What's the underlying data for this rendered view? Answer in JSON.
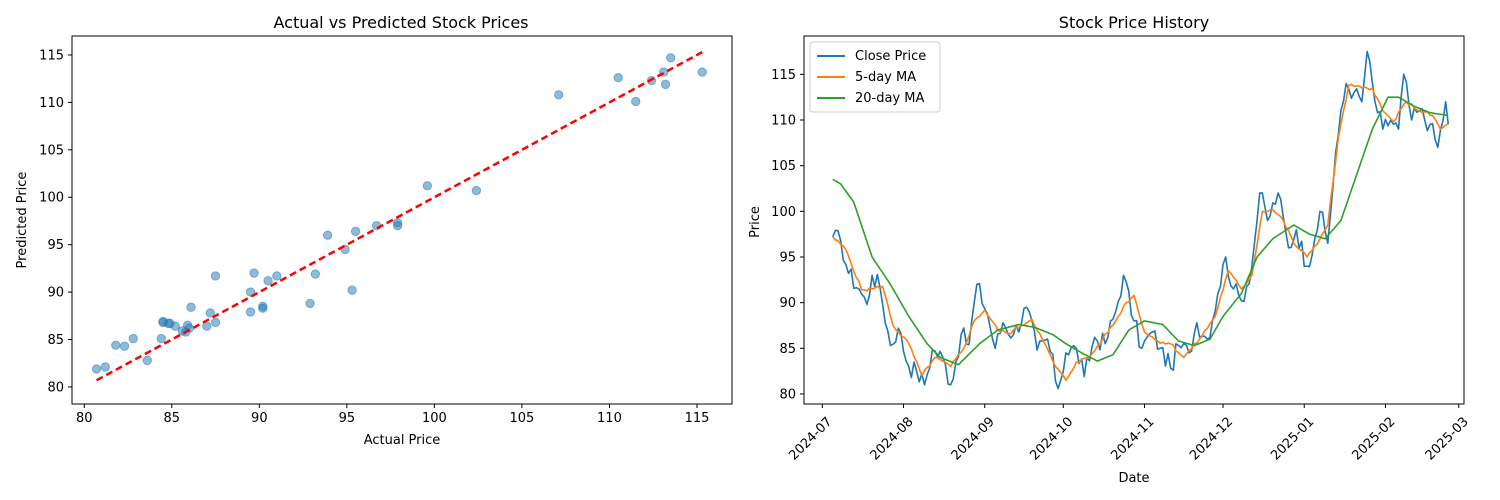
{
  "chart_data": [
    {
      "type": "scatter",
      "title": "Actual vs Predicted Stock Prices",
      "xlabel": "Actual Price",
      "ylabel": "Predicted Price",
      "xlim": [
        79.3,
        117.0
      ],
      "ylim": [
        78.2,
        117.0
      ],
      "xticks": [
        80,
        85,
        90,
        95,
        100,
        105,
        110,
        115
      ],
      "yticks": [
        80,
        85,
        90,
        95,
        100,
        105,
        110,
        115
      ],
      "grid": false,
      "point_color": "#1f77b4",
      "line_color": "#ff0000",
      "points": [
        {
          "x": 80.7,
          "y": 81.9
        },
        {
          "x": 81.2,
          "y": 82.1
        },
        {
          "x": 81.8,
          "y": 84.4
        },
        {
          "x": 82.3,
          "y": 84.3
        },
        {
          "x": 82.8,
          "y": 85.1
        },
        {
          "x": 83.6,
          "y": 82.8
        },
        {
          "x": 84.4,
          "y": 85.1
        },
        {
          "x": 84.5,
          "y": 86.8
        },
        {
          "x": 84.5,
          "y": 86.9
        },
        {
          "x": 84.8,
          "y": 86.7
        },
        {
          "x": 84.9,
          "y": 86.7
        },
        {
          "x": 85.2,
          "y": 86.4
        },
        {
          "x": 85.6,
          "y": 85.9
        },
        {
          "x": 85.8,
          "y": 85.8
        },
        {
          "x": 85.9,
          "y": 86.5
        },
        {
          "x": 86.0,
          "y": 86.2
        },
        {
          "x": 86.1,
          "y": 88.4
        },
        {
          "x": 87.0,
          "y": 86.4
        },
        {
          "x": 87.2,
          "y": 87.8
        },
        {
          "x": 87.5,
          "y": 86.8
        },
        {
          "x": 87.5,
          "y": 91.7
        },
        {
          "x": 89.5,
          "y": 90.0
        },
        {
          "x": 89.5,
          "y": 87.9
        },
        {
          "x": 89.7,
          "y": 92.0
        },
        {
          "x": 90.2,
          "y": 88.5
        },
        {
          "x": 90.2,
          "y": 88.3
        },
        {
          "x": 90.5,
          "y": 91.2
        },
        {
          "x": 91.0,
          "y": 91.7
        },
        {
          "x": 92.9,
          "y": 88.8
        },
        {
          "x": 93.2,
          "y": 91.9
        },
        {
          "x": 93.9,
          "y": 96.0
        },
        {
          "x": 94.9,
          "y": 94.5
        },
        {
          "x": 95.3,
          "y": 90.2
        },
        {
          "x": 95.5,
          "y": 96.4
        },
        {
          "x": 96.7,
          "y": 97.0
        },
        {
          "x": 97.9,
          "y": 97.0
        },
        {
          "x": 97.9,
          "y": 97.3
        },
        {
          "x": 99.6,
          "y": 101.2
        },
        {
          "x": 102.4,
          "y": 100.7
        },
        {
          "x": 107.1,
          "y": 110.8
        },
        {
          "x": 110.5,
          "y": 112.6
        },
        {
          "x": 111.5,
          "y": 110.1
        },
        {
          "x": 112.4,
          "y": 112.3
        },
        {
          "x": 113.1,
          "y": 113.2
        },
        {
          "x": 113.2,
          "y": 111.9
        },
        {
          "x": 113.5,
          "y": 114.7
        },
        {
          "x": 115.3,
          "y": 113.2
        }
      ],
      "reference_line": {
        "x": [
          80.7,
          115.3
        ],
        "y": [
          80.7,
          115.3
        ],
        "style": "dashed"
      }
    },
    {
      "type": "line",
      "title": "Stock Price History",
      "xlabel": "Date",
      "ylabel": "Price",
      "x_start": "2024-07-05",
      "x_step_days": 1,
      "xlim": [
        "2024-06-24",
        "2025-03-03"
      ],
      "ylim": [
        78.9,
        119.2
      ],
      "xticks": [
        "2024-07",
        "2024-08",
        "2024-09",
        "2024-10",
        "2024-11",
        "2024-12",
        "2025-01",
        "2025-02",
        "2025-03"
      ],
      "yticks": [
        80,
        85,
        90,
        95,
        100,
        105,
        110,
        115
      ],
      "grid": false,
      "legend": "top-left",
      "series": [
        {
          "name": "Close Price",
          "color": "#1f77b4",
          "values": []
        },
        {
          "name": "5-day MA",
          "color": "#ff7f0e",
          "values": []
        },
        {
          "name": "20-day MA",
          "color": "#2ca02c",
          "values": []
        }
      ],
      "anchors": {
        "close": [
          [
            "2024-07-05",
            97.2
          ],
          [
            "2024-07-08",
            96.8
          ],
          [
            "2024-07-11",
            93.2
          ],
          [
            "2024-07-15",
            91.5
          ],
          [
            "2024-07-18",
            89.8
          ],
          [
            "2024-07-20",
            93.0
          ],
          [
            "2024-07-23",
            91.7
          ],
          [
            "2024-07-27",
            85.3
          ],
          [
            "2024-07-30",
            87.2
          ],
          [
            "2024-08-03",
            83.0
          ],
          [
            "2024-08-06",
            82.5
          ],
          [
            "2024-08-09",
            81.0
          ],
          [
            "2024-08-12",
            84.8
          ],
          [
            "2024-08-16",
            84.0
          ],
          [
            "2024-08-19",
            81.0
          ],
          [
            "2024-08-23",
            86.5
          ],
          [
            "2024-08-26",
            85.4
          ],
          [
            "2024-08-29",
            92.0
          ],
          [
            "2024-09-02",
            88.8
          ],
          [
            "2024-09-05",
            85.0
          ],
          [
            "2024-09-08",
            87.8
          ],
          [
            "2024-09-12",
            86.5
          ],
          [
            "2024-09-17",
            89.5
          ],
          [
            "2024-09-21",
            84.8
          ],
          [
            "2024-09-25",
            86.0
          ],
          [
            "2024-09-29",
            80.6
          ],
          [
            "2024-10-02",
            84.5
          ],
          [
            "2024-10-06",
            85.0
          ],
          [
            "2024-10-09",
            81.9
          ],
          [
            "2024-10-13",
            86.2
          ],
          [
            "2024-10-17",
            85.5
          ],
          [
            "2024-10-21",
            89.0
          ],
          [
            "2024-10-24",
            93.0
          ],
          [
            "2024-10-28",
            88.0
          ],
          [
            "2024-10-31",
            85.0
          ],
          [
            "2024-11-04",
            86.8
          ],
          [
            "2024-11-07",
            85.0
          ],
          [
            "2024-11-11",
            82.8
          ],
          [
            "2024-11-14",
            85.3
          ],
          [
            "2024-11-18",
            84.5
          ],
          [
            "2024-11-21",
            87.8
          ],
          [
            "2024-11-25",
            86.0
          ],
          [
            "2024-11-29",
            91.0
          ],
          [
            "2024-12-02",
            95.0
          ],
          [
            "2024-12-05",
            91.5
          ],
          [
            "2024-12-08",
            90.2
          ],
          [
            "2024-12-12",
            94.0
          ],
          [
            "2024-12-15",
            102.0
          ],
          [
            "2024-12-18",
            99.0
          ],
          [
            "2024-12-22",
            102.0
          ],
          [
            "2024-12-26",
            96.0
          ],
          [
            "2024-12-29",
            98.0
          ],
          [
            "2025-01-02",
            94.0
          ],
          [
            "2025-01-05",
            97.0
          ],
          [
            "2025-01-07",
            100.0
          ],
          [
            "2025-01-10",
            96.5
          ],
          [
            "2025-01-13",
            106.5
          ],
          [
            "2025-01-17",
            114.0
          ],
          [
            "2025-01-20",
            113.0
          ],
          [
            "2025-01-23",
            112.0
          ],
          [
            "2025-01-25",
            117.5
          ],
          [
            "2025-01-28",
            112.0
          ],
          [
            "2025-01-31",
            109.0
          ],
          [
            "2025-02-03",
            110.0
          ],
          [
            "2025-02-06",
            109.0
          ],
          [
            "2025-02-08",
            115.0
          ],
          [
            "2025-02-11",
            110.0
          ],
          [
            "2025-02-14",
            111.0
          ],
          [
            "2025-02-18",
            109.5
          ],
          [
            "2025-02-21",
            107.0
          ],
          [
            "2025-02-24",
            112.0
          ],
          [
            "2025-02-25",
            109.5
          ]
        ],
        "ma5": [
          [
            "2024-07-05",
            97.2
          ],
          [
            "2024-07-10",
            95.8
          ],
          [
            "2024-07-16",
            91.4
          ],
          [
            "2024-07-20",
            91.5
          ],
          [
            "2024-07-24",
            91.8
          ],
          [
            "2024-07-28",
            87.5
          ],
          [
            "2024-08-03",
            85.5
          ],
          [
            "2024-08-08",
            82.0
          ],
          [
            "2024-08-13",
            84.0
          ],
          [
            "2024-08-19",
            83.0
          ],
          [
            "2024-08-24",
            85.0
          ],
          [
            "2024-08-28",
            88.0
          ],
          [
            "2024-09-01",
            89.2
          ],
          [
            "2024-09-06",
            87.0
          ],
          [
            "2024-09-10",
            86.6
          ],
          [
            "2024-09-15",
            87.5
          ],
          [
            "2024-09-19",
            88.2
          ],
          [
            "2024-09-23",
            86.0
          ],
          [
            "2024-09-28",
            83.0
          ],
          [
            "2024-10-02",
            81.5
          ],
          [
            "2024-10-06",
            83.5
          ],
          [
            "2024-10-11",
            84.0
          ],
          [
            "2024-10-16",
            86.0
          ],
          [
            "2024-10-21",
            88.0
          ],
          [
            "2024-10-25",
            90.0
          ],
          [
            "2024-10-28",
            90.8
          ],
          [
            "2024-11-01",
            86.8
          ],
          [
            "2024-11-06",
            85.8
          ],
          [
            "2024-11-11",
            85.5
          ],
          [
            "2024-11-16",
            84.0
          ],
          [
            "2024-11-22",
            86.0
          ],
          [
            "2024-11-28",
            88.5
          ],
          [
            "2024-12-03",
            93.5
          ],
          [
            "2024-12-08",
            91.5
          ],
          [
            "2024-12-12",
            93.0
          ],
          [
            "2024-12-16",
            100.0
          ],
          [
            "2024-12-20",
            100.2
          ],
          [
            "2024-12-24",
            99.0
          ],
          [
            "2024-12-28",
            96.5
          ],
          [
            "2025-01-02",
            95.0
          ],
          [
            "2025-01-07",
            97.0
          ],
          [
            "2025-01-10",
            98.5
          ],
          [
            "2025-01-14",
            108.0
          ],
          [
            "2025-01-18",
            113.8
          ],
          [
            "2025-01-23",
            113.5
          ],
          [
            "2025-01-27",
            113.5
          ],
          [
            "2025-01-31",
            111.0
          ],
          [
            "2025-02-04",
            109.8
          ],
          [
            "2025-02-09",
            112.0
          ],
          [
            "2025-02-14",
            111.0
          ],
          [
            "2025-02-19",
            110.5
          ],
          [
            "2025-02-22",
            109.0
          ],
          [
            "2025-02-25",
            109.6
          ]
        ],
        "ma20": [
          [
            "2024-07-05",
            103.5
          ],
          [
            "2024-07-08",
            103.0
          ],
          [
            "2024-07-13",
            101.0
          ],
          [
            "2024-07-20",
            95.0
          ],
          [
            "2024-07-27",
            92.0
          ],
          [
            "2024-08-03",
            88.5
          ],
          [
            "2024-08-10",
            85.5
          ],
          [
            "2024-08-15",
            84.0
          ],
          [
            "2024-08-22",
            83.2
          ],
          [
            "2024-08-30",
            85.5
          ],
          [
            "2024-09-06",
            87.0
          ],
          [
            "2024-09-14",
            87.6
          ],
          [
            "2024-09-20",
            87.3
          ],
          [
            "2024-09-27",
            86.5
          ],
          [
            "2024-10-02",
            85.5
          ],
          [
            "2024-10-08",
            84.5
          ],
          [
            "2024-10-14",
            83.6
          ],
          [
            "2024-10-20",
            84.3
          ],
          [
            "2024-10-26",
            87.0
          ],
          [
            "2024-11-01",
            88.0
          ],
          [
            "2024-11-08",
            87.6
          ],
          [
            "2024-11-14",
            85.8
          ],
          [
            "2024-11-20",
            85.3
          ],
          [
            "2024-11-26",
            86.0
          ],
          [
            "2024-12-01",
            88.5
          ],
          [
            "2024-12-08",
            91.0
          ],
          [
            "2024-12-14",
            95.0
          ],
          [
            "2024-12-20",
            97.0
          ],
          [
            "2024-12-28",
            98.5
          ],
          [
            "2025-01-03",
            97.5
          ],
          [
            "2025-01-09",
            97.0
          ],
          [
            "2025-01-15",
            99.0
          ],
          [
            "2025-01-21",
            104.0
          ],
          [
            "2025-01-27",
            109.0
          ],
          [
            "2025-02-02",
            112.5
          ],
          [
            "2025-02-06",
            112.5
          ],
          [
            "2025-02-12",
            111.5
          ],
          [
            "2025-02-18",
            110.8
          ],
          [
            "2025-02-25",
            110.5
          ]
        ]
      }
    }
  ]
}
